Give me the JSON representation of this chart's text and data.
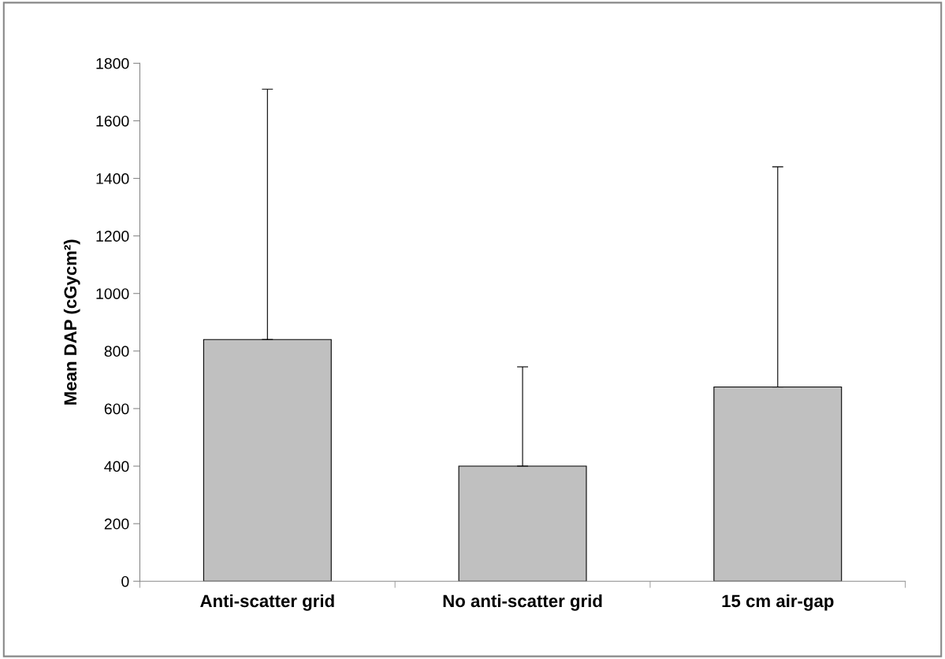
{
  "chart_data": {
    "type": "bar",
    "ylabel": "Mean DAP (cGycm²)",
    "categories": [
      "Anti-scatter grid",
      "No anti-scatter grid",
      "15 cm air-gap"
    ],
    "values": [
      840,
      400,
      675
    ],
    "errors": [
      [
        840,
        1710
      ],
      [
        400,
        745
      ],
      [
        675,
        1440
      ]
    ],
    "color": "#c0c0c0",
    "ylim": [
      0,
      1800
    ],
    "yticks": [
      0,
      200,
      400,
      600,
      800,
      1000,
      1200,
      1400,
      1600,
      1800
    ],
    "grid": false,
    "legend": false
  }
}
